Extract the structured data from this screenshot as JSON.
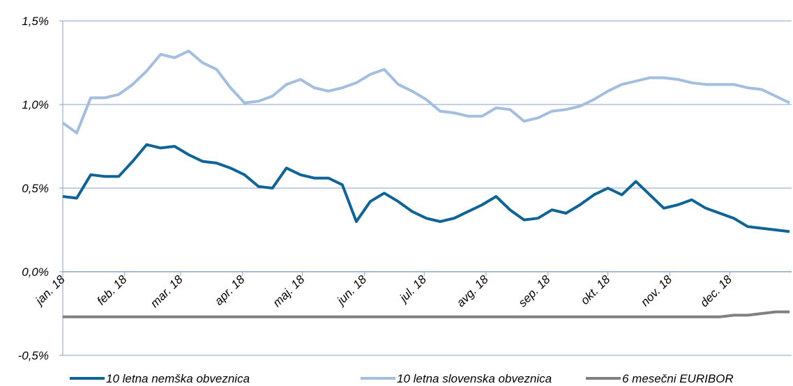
{
  "chart_data": {
    "type": "line",
    "x": [
      0,
      7,
      14,
      21,
      28,
      35,
      42,
      49,
      56,
      63,
      70,
      77,
      84,
      91,
      98,
      105,
      112,
      119,
      126,
      133,
      140,
      147,
      154,
      161,
      168,
      175,
      182,
      189,
      196,
      203,
      210,
      217,
      224,
      231,
      238,
      245,
      252,
      259,
      266,
      273,
      280,
      287,
      294,
      301,
      308,
      315,
      322,
      329,
      336,
      343,
      350,
      357,
      364
    ],
    "xlim": [
      0,
      365
    ],
    "xticks": [
      {
        "value": 0,
        "label": "jan. 18"
      },
      {
        "value": 31,
        "label": "feb. 18"
      },
      {
        "value": 59,
        "label": "mar. 18"
      },
      {
        "value": 90,
        "label": "apr. 18"
      },
      {
        "value": 120,
        "label": "maj. 18"
      },
      {
        "value": 151,
        "label": "jun. 18"
      },
      {
        "value": 181,
        "label": "jul. 18"
      },
      {
        "value": 212,
        "label": "avg. 18"
      },
      {
        "value": 243,
        "label": "sep. 18"
      },
      {
        "value": 273,
        "label": "okt. 18"
      },
      {
        "value": 304,
        "label": "nov. 18"
      },
      {
        "value": 334,
        "label": "dec. 18"
      }
    ],
    "ylim": [
      -0.5,
      1.5
    ],
    "yticks": [
      {
        "value": -0.5,
        "label": "-0,5%"
      },
      {
        "value": 0,
        "label": "0,0%"
      },
      {
        "value": 0.5,
        "label": "0,5%"
      },
      {
        "value": 1.0,
        "label": "1,0%"
      },
      {
        "value": 1.5,
        "label": "1,5%"
      }
    ],
    "grid": true,
    "legend": "bottom",
    "series": [
      {
        "name": "10 letna nemška obveznica",
        "color": "#0e6496",
        "values": [
          0.45,
          0.44,
          0.58,
          0.57,
          0.57,
          0.66,
          0.76,
          0.74,
          0.75,
          0.7,
          0.66,
          0.65,
          0.62,
          0.58,
          0.51,
          0.5,
          0.62,
          0.58,
          0.56,
          0.56,
          0.52,
          0.3,
          0.42,
          0.47,
          0.42,
          0.36,
          0.32,
          0.3,
          0.32,
          0.36,
          0.4,
          0.45,
          0.37,
          0.31,
          0.32,
          0.37,
          0.35,
          0.4,
          0.46,
          0.5,
          0.46,
          0.54,
          0.46,
          0.38,
          0.4,
          0.43,
          0.38,
          0.35,
          0.32,
          0.27,
          0.26,
          0.25,
          0.24
        ]
      },
      {
        "name": "10 letna slovenska obveznica",
        "color": "#a3bedf",
        "values": [
          0.89,
          0.83,
          1.04,
          1.04,
          1.06,
          1.12,
          1.2,
          1.3,
          1.28,
          1.32,
          1.25,
          1.21,
          1.1,
          1.01,
          1.02,
          1.05,
          1.12,
          1.15,
          1.1,
          1.08,
          1.1,
          1.13,
          1.18,
          1.21,
          1.12,
          1.08,
          1.03,
          0.96,
          0.95,
          0.93,
          0.93,
          0.98,
          0.97,
          0.9,
          0.92,
          0.96,
          0.97,
          0.99,
          1.03,
          1.08,
          1.12,
          1.14,
          1.16,
          1.16,
          1.15,
          1.13,
          1.12,
          1.12,
          1.12,
          1.1,
          1.09,
          1.05,
          1.01
        ]
      },
      {
        "name": "6 mesečni EURIBOR",
        "color": "#808080",
        "values": [
          -0.27,
          -0.27,
          -0.27,
          -0.27,
          -0.27,
          -0.27,
          -0.27,
          -0.27,
          -0.27,
          -0.27,
          -0.27,
          -0.27,
          -0.27,
          -0.27,
          -0.27,
          -0.27,
          -0.27,
          -0.27,
          -0.27,
          -0.27,
          -0.27,
          -0.27,
          -0.27,
          -0.27,
          -0.27,
          -0.27,
          -0.27,
          -0.27,
          -0.27,
          -0.27,
          -0.27,
          -0.27,
          -0.27,
          -0.27,
          -0.27,
          -0.27,
          -0.27,
          -0.27,
          -0.27,
          -0.27,
          -0.27,
          -0.27,
          -0.27,
          -0.27,
          -0.27,
          -0.27,
          -0.27,
          -0.27,
          -0.26,
          -0.26,
          -0.25,
          -0.24,
          -0.24
        ]
      }
    ]
  }
}
